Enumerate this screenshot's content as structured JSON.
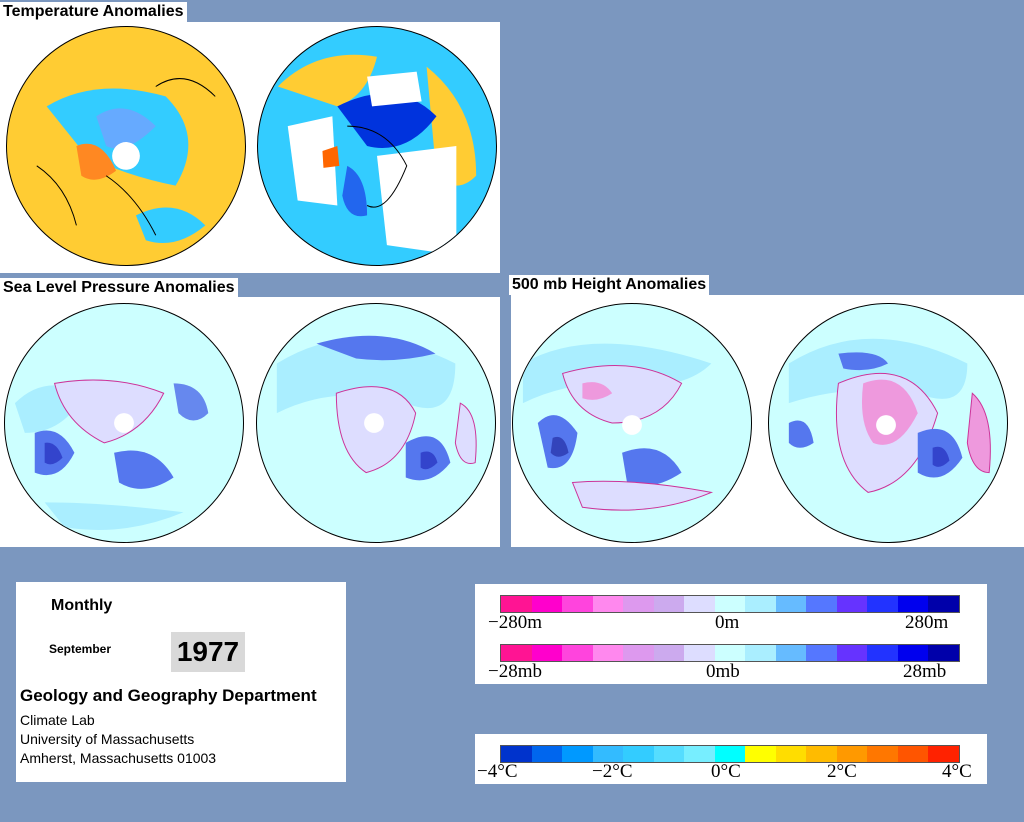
{
  "panels": {
    "temperature": {
      "title": "Temperature Anomalies"
    },
    "slp": {
      "title": "Sea Level Pressure Anomalies"
    },
    "height": {
      "title": "500 mb Height Anomalies"
    }
  },
  "info": {
    "period": "Monthly",
    "month": "September",
    "year": "1977",
    "department": "Geology and Geography Department",
    "lab": "Climate Lab",
    "university": "University of Massachusetts",
    "address": "Amherst, Massachusetts 01003"
  },
  "legend_height": {
    "left": "−280m",
    "center": "0m",
    "right": "280m",
    "colors": [
      "#ff1493",
      "#ff00cc",
      "#ff44dd",
      "#ff88ee",
      "#dd99ee",
      "#ccaaee",
      "#ddddff",
      "#ccffff",
      "#aaeeff",
      "#66bbff",
      "#5577ff",
      "#6633ff",
      "#2233ff",
      "#0000ee",
      "#0000aa"
    ]
  },
  "legend_pressure": {
    "left": "−28mb",
    "center": "0mb",
    "right": "28mb",
    "colors": [
      "#ff1493",
      "#ff00cc",
      "#ff44dd",
      "#ff88ee",
      "#dd99ee",
      "#ccaaee",
      "#ddddff",
      "#ccffff",
      "#aaeeff",
      "#66bbff",
      "#5577ff",
      "#6633ff",
      "#2233ff",
      "#0000ee",
      "#0000aa"
    ]
  },
  "legend_temperature": {
    "labels": [
      "−4°C",
      "−2°C",
      "0°C",
      "2°C",
      "4°C"
    ],
    "colors": [
      "#0033cc",
      "#0066ee",
      "#0099ff",
      "#33bbff",
      "#33ccff",
      "#55ddff",
      "#77eeff",
      "#00ffff",
      "#ffff00",
      "#ffdd00",
      "#ffbb00",
      "#ff9900",
      "#ff7700",
      "#ff5500",
      "#ff2200"
    ]
  }
}
